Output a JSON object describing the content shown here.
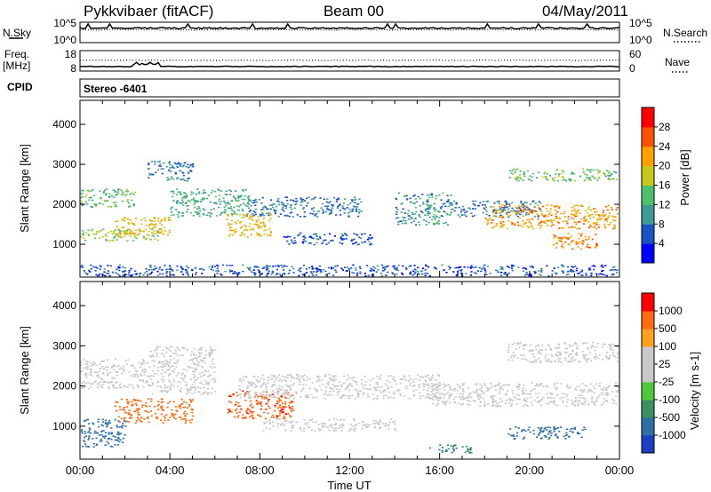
{
  "header": {
    "station": "Pykkvibaer (fitACF)",
    "beam": "Beam 00",
    "date": "04/May/2011"
  },
  "strip_nsky": {
    "left_label": "N.Sky",
    "left_ticks": [
      "10^5",
      "10^0"
    ],
    "right_ticks": [
      "10^5",
      "10^0"
    ],
    "right_label": "N.Search"
  },
  "strip_freq": {
    "left_label_line1": "Freq.",
    "left_label_line2": "[MHz]",
    "left_ticks": [
      "18",
      "8"
    ],
    "right_ticks": [
      "60",
      "0"
    ],
    "right_label": "Nave"
  },
  "cpid": {
    "label": "CPID",
    "value": "Stereo -6401"
  },
  "x_axis": {
    "label": "Time UT",
    "range_hours": [
      0,
      24
    ],
    "tick_labels": [
      "00:00",
      "04:00",
      "08:00",
      "12:00",
      "16:00",
      "20:00",
      "00:00"
    ]
  },
  "chart_data": [
    {
      "type": "heatmap",
      "panel": "power",
      "ylabel": "Slant Range [km]",
      "ylim": [
        180,
        4600
      ],
      "y_ticks": [
        1000,
        2000,
        3000,
        4000
      ],
      "colorbar_label": "Power [dB]",
      "colorbar_ticks": [
        "4",
        "8",
        "12",
        "16",
        "20",
        "24",
        "28"
      ],
      "colorbar_colors": [
        "#0000ff",
        "#1a52c8",
        "#3d9a96",
        "#4cc06a",
        "#c8c81a",
        "#ffa000",
        "#ff5000",
        "#ff0000"
      ],
      "scatter_bands": [
        {
          "t0": 0.0,
          "t1": 2.5,
          "r0": 1950,
          "r1": 2400,
          "level": 14
        },
        {
          "t0": 0.0,
          "t1": 3.5,
          "r0": 1100,
          "r1": 1400,
          "level": 16
        },
        {
          "t0": 1.5,
          "t1": 4.0,
          "r0": 1200,
          "r1": 1700,
          "level": 20
        },
        {
          "t0": 3.0,
          "t1": 5.0,
          "r0": 2600,
          "r1": 3100,
          "level": 8
        },
        {
          "t0": 4.0,
          "t1": 7.5,
          "r0": 1700,
          "r1": 2400,
          "level": 12
        },
        {
          "t0": 6.5,
          "t1": 8.5,
          "r0": 1200,
          "r1": 1800,
          "level": 20
        },
        {
          "t0": 7.5,
          "t1": 12.5,
          "r0": 1700,
          "r1": 2200,
          "level": 8
        },
        {
          "t0": 9.0,
          "t1": 13.0,
          "r0": 1000,
          "r1": 1300,
          "level": 6
        },
        {
          "t0": 14.0,
          "t1": 16.5,
          "r0": 1500,
          "r1": 2300,
          "level": 10
        },
        {
          "t0": 16.5,
          "t1": 20.5,
          "r0": 1700,
          "r1": 2100,
          "level": 8
        },
        {
          "t0": 18.0,
          "t1": 24.0,
          "r0": 1400,
          "r1": 2000,
          "level": 22
        },
        {
          "t0": 19.0,
          "t1": 24.0,
          "r0": 2600,
          "r1": 2900,
          "level": 14
        },
        {
          "t0": 21.0,
          "t1": 23.0,
          "r0": 900,
          "r1": 1300,
          "level": 24
        },
        {
          "t0": 0.0,
          "t1": 24.0,
          "r0": 200,
          "r1": 500,
          "level": 6
        }
      ]
    },
    {
      "type": "heatmap",
      "panel": "velocity",
      "ylabel": "Slant Range [km]",
      "ylim": [
        180,
        4600
      ],
      "y_ticks": [
        1000,
        2000,
        3000,
        4000
      ],
      "colorbar_label": "Velocity [m s-1]",
      "colorbar_ticks": [
        "1000",
        "500",
        "100",
        "25",
        "-25",
        "-100",
        "-500",
        "-1000"
      ],
      "colorbar_colors": [
        "#1c3fc4",
        "#2e6fa8",
        "#3a9060",
        "#52c83c",
        "#c8c8c8",
        "#c8c8c8",
        "#ffa020",
        "#ff6a10",
        "#ff0000"
      ],
      "scatter_bands": [
        {
          "t0": 0.0,
          "t1": 3.0,
          "r0": 1950,
          "r1": 2700,
          "level": 0
        },
        {
          "t0": 1.5,
          "t1": 5.0,
          "r0": 1100,
          "r1": 1700,
          "level": -200
        },
        {
          "t0": 3.0,
          "t1": 6.0,
          "r0": 1800,
          "r1": 3000,
          "level": 0
        },
        {
          "t0": 6.5,
          "t1": 9.5,
          "r0": 1200,
          "r1": 1900,
          "level": -400
        },
        {
          "t0": 7.0,
          "t1": 16.0,
          "r0": 1700,
          "r1": 2300,
          "level": 0
        },
        {
          "t0": 8.0,
          "t1": 14.0,
          "r0": 900,
          "r1": 1200,
          "level": 0
        },
        {
          "t0": 15.5,
          "t1": 24.0,
          "r0": 1500,
          "r1": 2100,
          "level": 0
        },
        {
          "t0": 19.0,
          "t1": 24.0,
          "r0": 2600,
          "r1": 3100,
          "level": 0
        },
        {
          "t0": 0.0,
          "t1": 2.0,
          "r0": 500,
          "r1": 1200,
          "level": 300
        },
        {
          "t0": 15.5,
          "t1": 17.5,
          "r0": 350,
          "r1": 550,
          "level": 100
        },
        {
          "t0": 19.0,
          "t1": 22.5,
          "r0": 700,
          "r1": 1000,
          "level": 300
        }
      ]
    }
  ]
}
